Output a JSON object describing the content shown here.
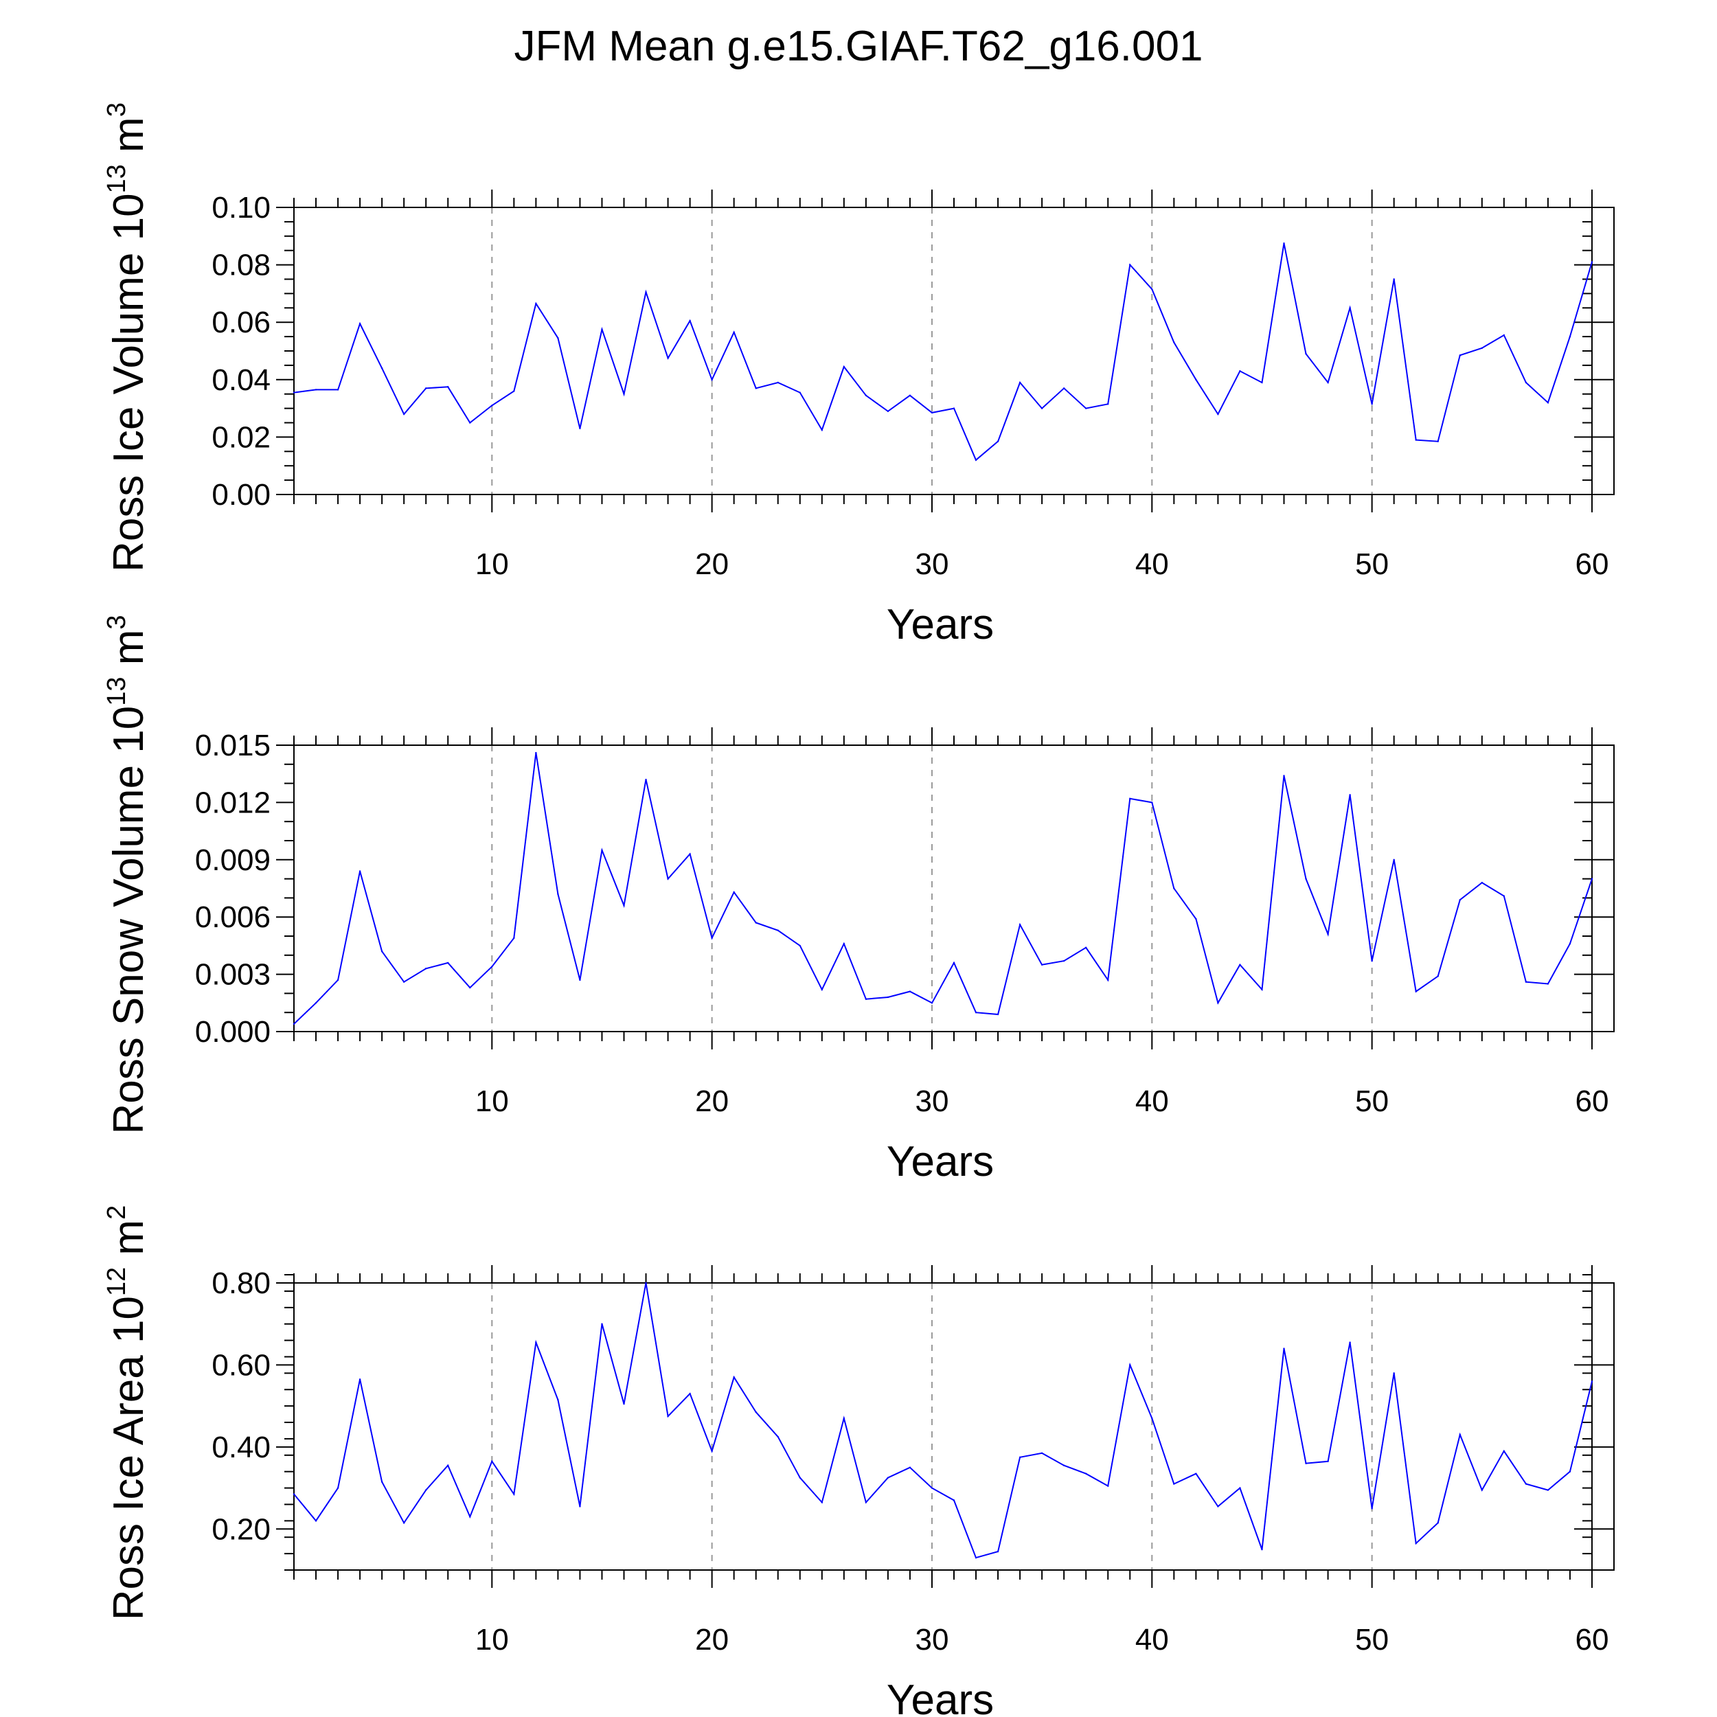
{
  "title": "JFM Mean g.e15.GIAF.T62_g16.001",
  "chart_data": [
    {
      "type": "line",
      "ylabel": {
        "main": "Ross Ice Volume 10",
        "exp": "13",
        "unit": " m",
        "unit_exp": "3"
      },
      "xlabel": "Years",
      "xlim": [
        1,
        61
      ],
      "ylim": [
        0,
        0.1
      ],
      "yticks": [
        "0.00",
        "0.02",
        "0.04",
        "0.06",
        "0.08",
        "0.10"
      ],
      "ytick_values": [
        0,
        0.02,
        0.04,
        0.06,
        0.08,
        0.1
      ],
      "yminor_step": 0.005,
      "xticks": [
        "10",
        "20",
        "30",
        "40",
        "50",
        "60"
      ],
      "xtick_values": [
        10,
        20,
        30,
        40,
        50,
        60
      ],
      "grid": "vertical dashed at major x ticks",
      "line_color": "#0000ff",
      "x": [
        1,
        2,
        3,
        4,
        5,
        6,
        7,
        8,
        9,
        10,
        11,
        12,
        13,
        14,
        15,
        16,
        17,
        18,
        19,
        20,
        21,
        22,
        23,
        24,
        25,
        26,
        27,
        28,
        29,
        30,
        31,
        32,
        33,
        34,
        35,
        36,
        37,
        38,
        39,
        40,
        41,
        42,
        43,
        44,
        45,
        46,
        47,
        48,
        49,
        50,
        51,
        52,
        53,
        54,
        55,
        56,
        57,
        58,
        59,
        60
      ],
      "values": [
        0.0355,
        0.0365,
        0.0365,
        0.0595,
        0.044,
        0.028,
        0.037,
        0.0375,
        0.025,
        0.031,
        0.036,
        0.0665,
        0.0545,
        0.023,
        0.0575,
        0.035,
        0.0705,
        0.0475,
        0.0605,
        0.04,
        0.0565,
        0.037,
        0.039,
        0.0355,
        0.0225,
        0.0445,
        0.0345,
        0.029,
        0.0345,
        0.0285,
        0.03,
        0.012,
        0.0185,
        0.039,
        0.03,
        0.037,
        0.03,
        0.0315,
        0.08,
        0.0715,
        0.053,
        0.04,
        0.028,
        0.043,
        0.039,
        0.0875,
        0.049,
        0.039,
        0.065,
        0.0315,
        0.075,
        0.019,
        0.0185,
        0.0485,
        0.051,
        0.0555,
        0.039,
        0.032,
        0.055,
        0.081
      ]
    },
    {
      "type": "line",
      "ylabel": {
        "main": "Ross Snow Volume 10",
        "exp": "13",
        "unit": " m",
        "unit_exp": "3"
      },
      "xlabel": "Years",
      "xlim": [
        1,
        61
      ],
      "ylim": [
        0,
        0.015
      ],
      "yticks": [
        "0.000",
        "0.003",
        "0.006",
        "0.009",
        "0.012",
        "0.015"
      ],
      "ytick_values": [
        0,
        0.003,
        0.006,
        0.009,
        0.012,
        0.015
      ],
      "yminor_step": 0.001,
      "xticks": [
        "10",
        "20",
        "30",
        "40",
        "50",
        "60"
      ],
      "xtick_values": [
        10,
        20,
        30,
        40,
        50,
        60
      ],
      "grid": "vertical dashed at major x ticks",
      "line_color": "#0000ff",
      "x": [
        1,
        2,
        3,
        4,
        5,
        6,
        7,
        8,
        9,
        10,
        11,
        12,
        13,
        14,
        15,
        16,
        17,
        18,
        19,
        20,
        21,
        22,
        23,
        24,
        25,
        26,
        27,
        28,
        29,
        30,
        31,
        32,
        33,
        34,
        35,
        36,
        37,
        38,
        39,
        40,
        41,
        42,
        43,
        44,
        45,
        46,
        47,
        48,
        49,
        50,
        51,
        52,
        53,
        54,
        55,
        56,
        57,
        58,
        59,
        60
      ],
      "values": [
        0.0004,
        0.0015,
        0.0027,
        0.0084,
        0.0042,
        0.0026,
        0.0033,
        0.0036,
        0.0023,
        0.0034,
        0.0049,
        0.0146,
        0.0072,
        0.0027,
        0.0095,
        0.0066,
        0.0132,
        0.008,
        0.0093,
        0.0049,
        0.0073,
        0.0057,
        0.0053,
        0.0045,
        0.0022,
        0.0046,
        0.0017,
        0.0018,
        0.0021,
        0.0015,
        0.0036,
        0.001,
        0.0009,
        0.0056,
        0.0035,
        0.0037,
        0.0044,
        0.0027,
        0.0122,
        0.012,
        0.0075,
        0.0059,
        0.0015,
        0.0035,
        0.0022,
        0.0134,
        0.008,
        0.0051,
        0.0124,
        0.0037,
        0.009,
        0.0021,
        0.0029,
        0.0069,
        0.0078,
        0.0071,
        0.0026,
        0.0025,
        0.0046,
        0.008
      ]
    },
    {
      "type": "line",
      "ylabel": {
        "main": "Ross Ice Area 10",
        "exp": "12",
        "unit": " m",
        "unit_exp": "2"
      },
      "xlabel": "Years",
      "xlim": [
        1,
        61
      ],
      "ylim": [
        0.1,
        0.8
      ],
      "yticks": [
        "0.20",
        "0.40",
        "0.60",
        "0.80"
      ],
      "ytick_values": [
        0.2,
        0.4,
        0.6,
        0.8
      ],
      "yminor_step": 0.04,
      "xticks": [
        "10",
        "20",
        "30",
        "40",
        "50",
        "60"
      ],
      "xtick_values": [
        10,
        20,
        30,
        40,
        50,
        60
      ],
      "grid": "vertical dashed at major x ticks",
      "line_color": "#0000ff",
      "x": [
        1,
        2,
        3,
        4,
        5,
        6,
        7,
        8,
        9,
        10,
        11,
        12,
        13,
        14,
        15,
        16,
        17,
        18,
        19,
        20,
        21,
        22,
        23,
        24,
        25,
        26,
        27,
        28,
        29,
        30,
        31,
        32,
        33,
        34,
        35,
        36,
        37,
        38,
        39,
        40,
        41,
        42,
        43,
        44,
        45,
        46,
        47,
        48,
        49,
        50,
        51,
        52,
        53,
        54,
        55,
        56,
        57,
        58,
        59,
        60
      ],
      "values": [
        0.285,
        0.22,
        0.3,
        0.565,
        0.315,
        0.215,
        0.295,
        0.355,
        0.23,
        0.365,
        0.285,
        0.655,
        0.515,
        0.255,
        0.7,
        0.505,
        0.8,
        0.475,
        0.53,
        0.39,
        0.57,
        0.485,
        0.425,
        0.325,
        0.265,
        0.47,
        0.265,
        0.325,
        0.35,
        0.3,
        0.27,
        0.13,
        0.145,
        0.375,
        0.385,
        0.355,
        0.335,
        0.305,
        0.6,
        0.47,
        0.31,
        0.335,
        0.255,
        0.3,
        0.15,
        0.64,
        0.36,
        0.365,
        0.655,
        0.25,
        0.58,
        0.165,
        0.215,
        0.43,
        0.295,
        0.39,
        0.31,
        0.295,
        0.34,
        0.56
      ]
    }
  ]
}
